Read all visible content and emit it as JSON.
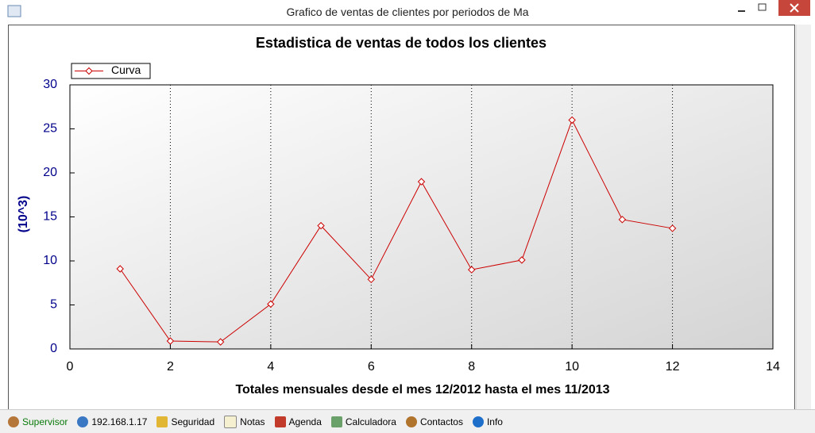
{
  "window": {
    "title": "Grafico de ventas de clientes por periodos de Ma"
  },
  "chart_data": {
    "type": "line",
    "title": "Estadistica de ventas de todos los clientes",
    "x_label": "Totales mensuales desde el mes 12/2012 hasta el mes 11/2013",
    "y_label": "(10^3)",
    "series": [
      {
        "name": "Curva",
        "color": "#cc0000",
        "x": [
          1,
          2,
          3,
          4,
          5,
          6,
          7,
          8,
          9,
          10,
          11,
          12
        ],
        "values": [
          9.1,
          0.9,
          0.8,
          5.1,
          14,
          7.9,
          19,
          9,
          10.1,
          26,
          14.7,
          13.7
        ]
      }
    ],
    "xlim": [
      0,
      14
    ],
    "xticks": [
      0,
      2,
      4,
      6,
      8,
      10,
      12,
      14
    ],
    "ylim": [
      0,
      30
    ],
    "yticks": [
      0,
      5,
      10,
      15,
      20,
      25,
      30
    ],
    "grid": true,
    "legend": "top-left"
  },
  "status_bar": {
    "items": [
      "Supervisor",
      "192.168.1.17",
      "Seguridad",
      "Notas",
      "Agenda",
      "Calculadora",
      "Contactos",
      "Info"
    ]
  }
}
